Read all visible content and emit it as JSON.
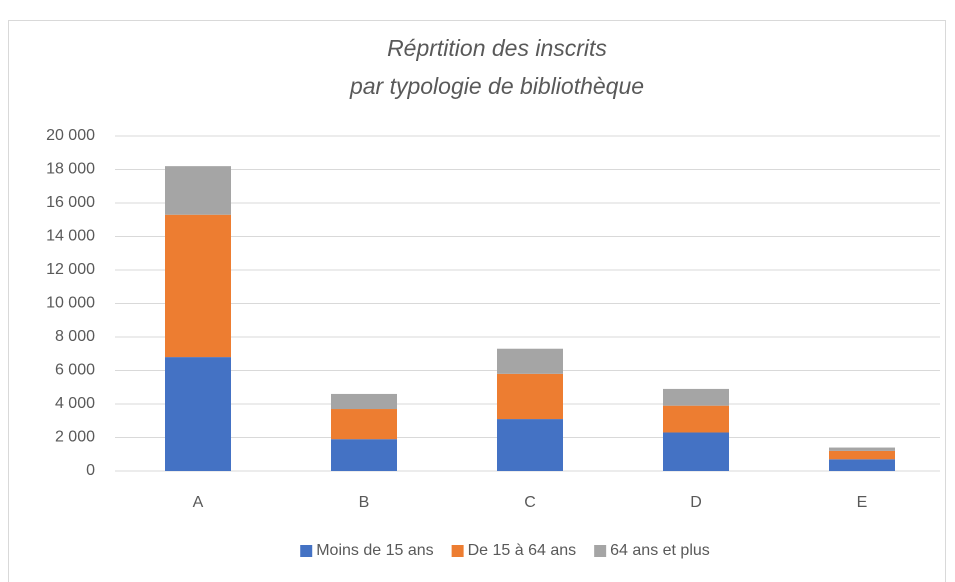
{
  "chart_data": {
    "type": "stacked_bar",
    "title": [
      "Réprtition des inscrits",
      "par typologie de bibliothèque"
    ],
    "categories": [
      "A",
      "B",
      "C",
      "D",
      "E"
    ],
    "series": [
      {
        "name": "Moins de 15 ans",
        "color": "#4472c4",
        "values": [
          6800,
          1900,
          3100,
          2300,
          700
        ]
      },
      {
        "name": "De 15 à 64 ans",
        "color": "#ed7d31",
        "values": [
          8500,
          1800,
          2700,
          1600,
          500
        ]
      },
      {
        "name": "64 ans et plus",
        "color": "#a5a5a5",
        "values": [
          2900,
          900,
          1500,
          1000,
          200
        ]
      }
    ],
    "ylim": [
      0,
      20000
    ],
    "yticks": [
      0,
      {
        "value": 2000,
        "label": "2 000"
      },
      {
        "value": 4000,
        "label": "4 000"
      },
      {
        "value": 6000,
        "label": "6 000"
      },
      {
        "value": 8000,
        "label": "8 000"
      },
      {
        "value": 10000,
        "label": "10 000"
      },
      {
        "value": 12000,
        "label": "12 000"
      },
      {
        "value": 14000,
        "label": "14 000"
      },
      {
        "value": 16000,
        "label": "16 000"
      },
      {
        "value": 18000,
        "label": "18 000"
      },
      {
        "value": 20000,
        "label": "20 000"
      }
    ],
    "grid": true,
    "legend": "bottom"
  }
}
